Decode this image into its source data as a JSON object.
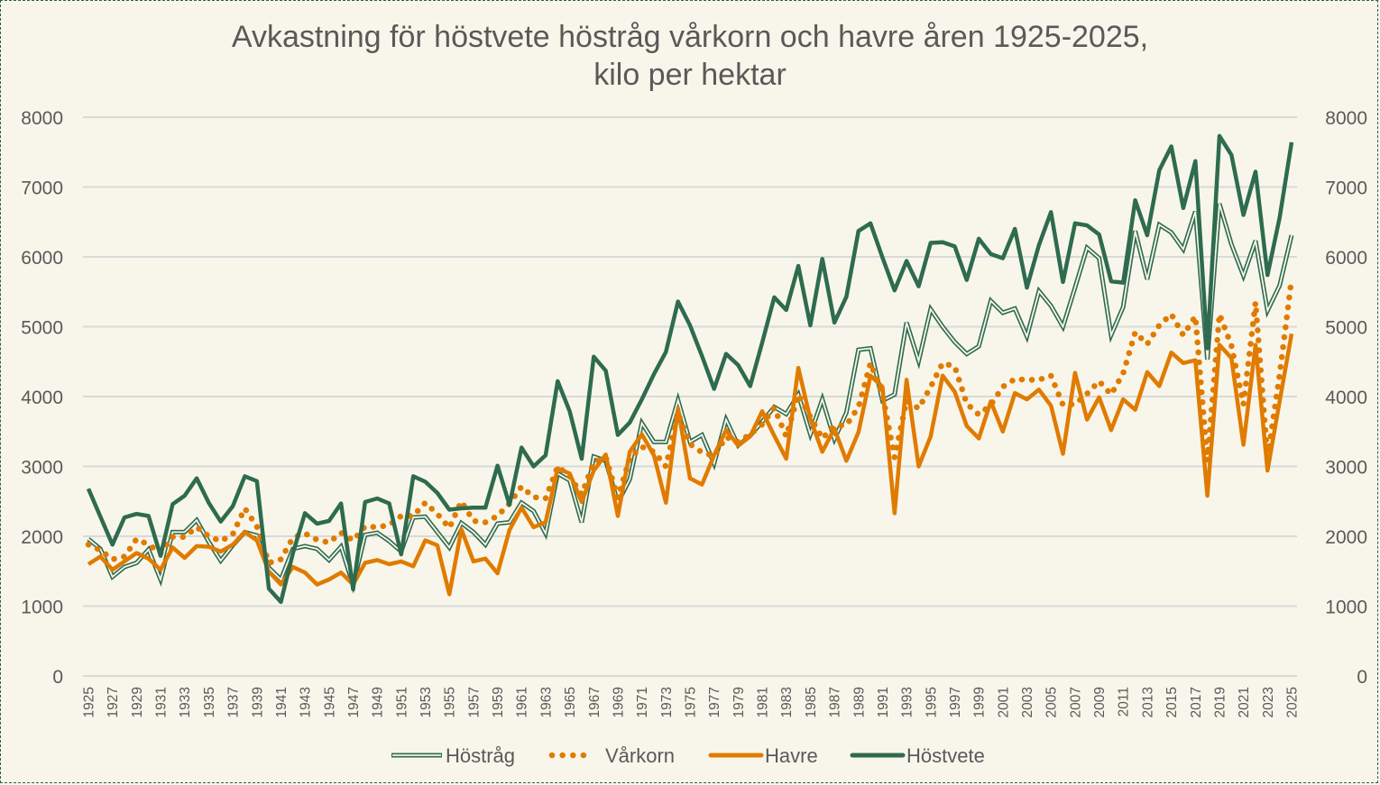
{
  "chart_data": {
    "type": "line",
    "title": "Avkastning för höstvete höstråg vårkorn och havre åren 1925-2025,",
    "subtitle": "kilo per hektar",
    "xlabel": "",
    "ylabel": "",
    "ylim": [
      0,
      8000
    ],
    "y_ticks": [
      "0",
      "1000",
      "2000",
      "3000",
      "4000",
      "5000",
      "6000",
      "7000",
      "8000"
    ],
    "y2_ticks": [
      "0",
      "1000",
      "2000",
      "3000",
      "4000",
      "5000",
      "6000",
      "7000",
      "8000"
    ],
    "grid": true,
    "legend_position": "bottom",
    "x_start": 1925,
    "x_end": 2025,
    "x_tick_step": 2,
    "x_tick_labels": [
      "1925",
      "1927",
      "1929",
      "1931",
      "1933",
      "1935",
      "1937",
      "1939",
      "1941",
      "1943",
      "1945",
      "1947",
      "1949",
      "1951",
      "1953",
      "1955",
      "1957",
      "1959",
      "1961",
      "1963",
      "1965",
      "1967",
      "1969",
      "1971",
      "1973",
      "1975",
      "1977",
      "1979",
      "1981",
      "1983",
      "1985",
      "1987",
      "1989",
      "1991",
      "1993",
      "1995",
      "1997",
      "1999",
      "2001",
      "2003",
      "2005",
      "2007",
      "2009",
      "2011",
      "2013",
      "2015",
      "2017",
      "2019",
      "2021",
      "2023",
      "2025"
    ],
    "series": [
      {
        "name": "Höstråg",
        "style": "double",
        "color": "#2e6b4f",
        "values": [
          1960,
          1820,
          1420,
          1560,
          1620,
          1810,
          1380,
          2060,
          2060,
          2230,
          1920,
          1650,
          1870,
          2060,
          2010,
          1550,
          1380,
          1820,
          1860,
          1820,
          1660,
          1850,
          1300,
          2020,
          2050,
          1930,
          1780,
          2270,
          2280,
          2060,
          1840,
          2190,
          2060,
          1880,
          2180,
          2200,
          2480,
          2360,
          2040,
          2900,
          2800,
          2200,
          3140,
          3080,
          2480,
          2820,
          3620,
          3350,
          3350,
          3950,
          3350,
          3450,
          3040,
          3670,
          3300,
          3440,
          3640,
          3850,
          3750,
          4030,
          3460,
          3960,
          3390,
          3770,
          4670,
          4690,
          3940,
          4030,
          5060,
          4510,
          5250,
          5000,
          4780,
          4610,
          4720,
          5370,
          5200,
          5260,
          4860,
          5510,
          5300,
          5000,
          5560,
          6130,
          5980,
          4880,
          5280,
          6370,
          5680,
          6460,
          6350,
          6110,
          6650,
          4530,
          6760,
          6180,
          5730,
          6230,
          5230,
          5590,
          6310
        ]
      },
      {
        "name": "Vårkorn",
        "style": "dotted",
        "color": "#e07b00",
        "values": [
          1880,
          1800,
          1670,
          1710,
          1960,
          1880,
          1760,
          1990,
          1990,
          2130,
          2000,
          1930,
          2030,
          2400,
          2140,
          1620,
          1670,
          1980,
          2040,
          1950,
          1910,
          2050,
          1940,
          2140,
          2130,
          2160,
          2290,
          2290,
          2480,
          2320,
          2120,
          2500,
          2220,
          2200,
          2290,
          2470,
          2710,
          2560,
          2540,
          3000,
          2860,
          2600,
          3060,
          3130,
          2550,
          3120,
          3280,
          3210,
          3000,
          3760,
          3320,
          3200,
          3150,
          3420,
          3350,
          3460,
          3600,
          3840,
          3430,
          4030,
          3710,
          3400,
          3580,
          3590,
          3850,
          4480,
          4030,
          3130,
          3940,
          3830,
          4140,
          4480,
          4430,
          3900,
          3740,
          3880,
          4140,
          4250,
          4240,
          4240,
          4300,
          3880,
          3890,
          4040,
          4220,
          4030,
          4330,
          4920,
          4750,
          5020,
          5180,
          4880,
          5150,
          3080,
          5180,
          4730,
          3890,
          5350,
          3120,
          4310,
          5690
        ]
      },
      {
        "name": "Havre",
        "style": "solid",
        "color": "#e07b00",
        "values": [
          1600,
          1710,
          1520,
          1640,
          1760,
          1680,
          1520,
          1840,
          1690,
          1860,
          1850,
          1780,
          1880,
          2060,
          1940,
          1490,
          1310,
          1560,
          1480,
          1310,
          1380,
          1480,
          1310,
          1620,
          1660,
          1600,
          1640,
          1570,
          1940,
          1870,
          1170,
          2100,
          1640,
          1680,
          1470,
          2090,
          2410,
          2130,
          2200,
          2970,
          2900,
          2490,
          2940,
          3170,
          2290,
          3210,
          3460,
          3160,
          2480,
          3830,
          2830,
          2740,
          3160,
          3520,
          3300,
          3430,
          3790,
          3440,
          3110,
          4410,
          3680,
          3210,
          3540,
          3080,
          3490,
          4300,
          4140,
          2330,
          4240,
          3000,
          3430,
          4300,
          4070,
          3580,
          3400,
          3930,
          3500,
          4050,
          3960,
          4100,
          3870,
          3180,
          4340,
          3670,
          3990,
          3520,
          3960,
          3810,
          4350,
          4150,
          4630,
          4480,
          4520,
          2580,
          4740,
          4550,
          3310,
          4740,
          2940,
          3930,
          4900
        ]
      },
      {
        "name": "Höstvete",
        "style": "solid-dark",
        "color": "#2e6b4f",
        "values": [
          2680,
          2280,
          1880,
          2270,
          2320,
          2290,
          1720,
          2460,
          2580,
          2830,
          2480,
          2210,
          2430,
          2860,
          2790,
          1250,
          1060,
          1760,
          2330,
          2180,
          2220,
          2470,
          1240,
          2490,
          2540,
          2470,
          1740,
          2860,
          2780,
          2620,
          2380,
          2400,
          2410,
          2410,
          3010,
          2450,
          3270,
          3000,
          3160,
          4220,
          3790,
          3110,
          4570,
          4370,
          3450,
          3630,
          3960,
          4320,
          4640,
          5360,
          5020,
          4580,
          4110,
          4610,
          4450,
          4150,
          4770,
          5420,
          5240,
          5870,
          5020,
          5970,
          5060,
          5430,
          6370,
          6480,
          5990,
          5520,
          5940,
          5580,
          6200,
          6210,
          6150,
          5670,
          6260,
          6040,
          5980,
          6400,
          5560,
          6170,
          6640,
          5640,
          6480,
          6450,
          6320,
          5650,
          5630,
          6810,
          6310,
          7240,
          7580,
          6700,
          7370,
          4690,
          7730,
          7460,
          6600,
          7220,
          5740,
          6560,
          7640
        ]
      }
    ]
  }
}
